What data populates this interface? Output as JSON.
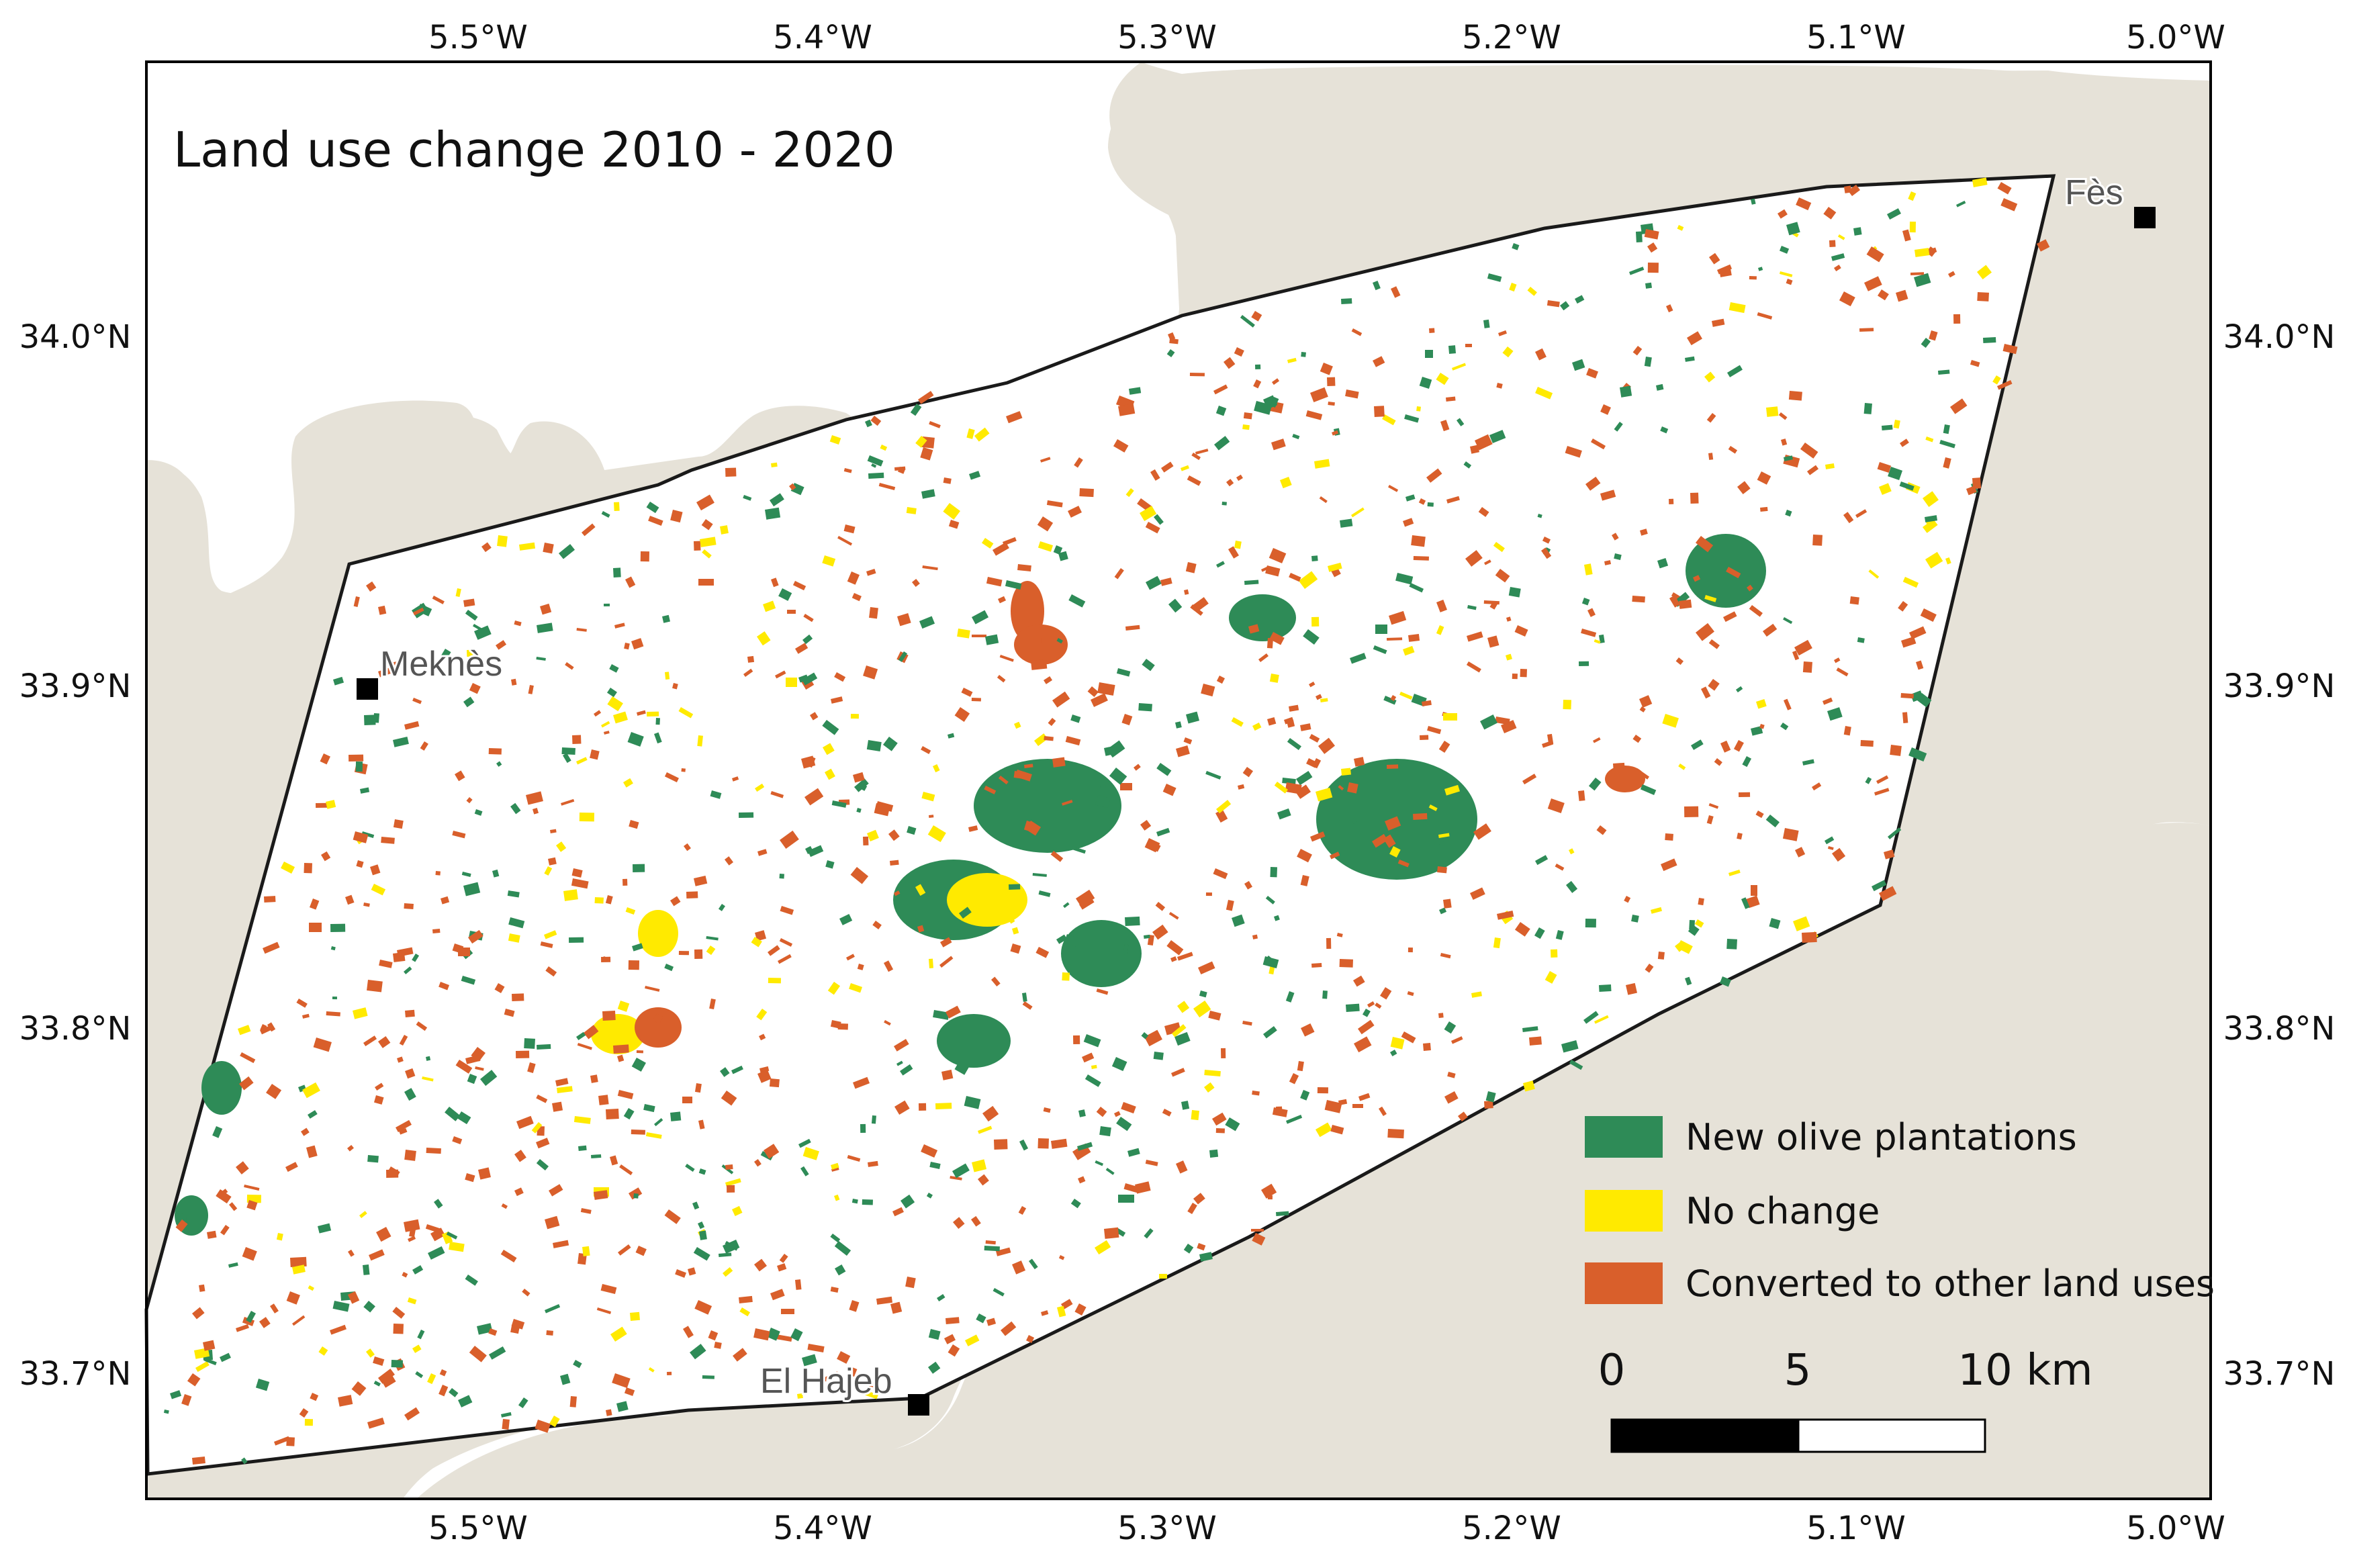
{
  "map": {
    "title": "Land use change 2010 - 2020",
    "lon_ticks": [
      "5.5°W",
      "5.4°W",
      "5.3°W",
      "5.2°W",
      "5.1°W",
      "5.0°W"
    ],
    "lat_ticks": [
      "34.0°N",
      "33.9°N",
      "33.8°N",
      "33.7°N"
    ],
    "cities": [
      {
        "name": "Fès",
        "lon": -5.017,
        "lat": 34.035
      },
      {
        "name": "Meknès",
        "lon": -5.53,
        "lat": 33.898
      },
      {
        "name": "El Hajeb",
        "lon": -5.373,
        "lat": 33.688
      }
    ],
    "legend": [
      {
        "label": "New olive plantations",
        "color": "#2e8b57"
      },
      {
        "label": "No change",
        "color": "#ffea00"
      },
      {
        "label": "Converted to other land uses",
        "color": "#d95f2b"
      }
    ],
    "scale_bar": {
      "labels": [
        "0",
        "5",
        "10 km"
      ]
    },
    "colors": {
      "background_land": "#e6e2d8",
      "study_area": "#ffffff",
      "frame": "#000000"
    }
  }
}
